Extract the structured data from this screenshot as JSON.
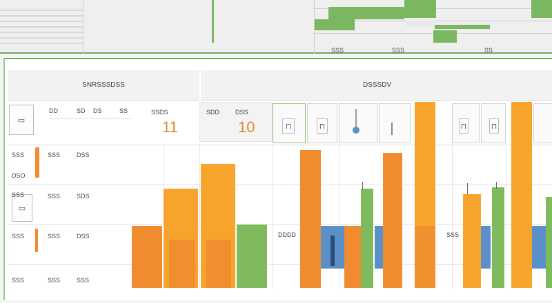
{
  "panel": {
    "header_left": "SNRSSSDSS",
    "header_right": "DSSSDV",
    "subheader_cols": [
      "DD",
      "SD",
      "DS",
      "SS"
    ],
    "kpi_1": {
      "label": "SSDS",
      "value": "11"
    },
    "kpi_2": {
      "label": "SDD",
      "value": "10"
    },
    "kpi_2_caption": "DSS"
  },
  "rows": [
    {
      "code": "SSS",
      "a": "SSS",
      "b": "DSS"
    },
    {
      "code": "DSO",
      "a": "SSS",
      "b": "SDS"
    },
    {
      "code": "SSS",
      "a": "SSS",
      "b": "DSS"
    },
    {
      "code": "SSS",
      "a": "SSS",
      "b": "SSS"
    }
  ],
  "side_labels": [
    "SSS",
    "SSS",
    "SSS"
  ],
  "chart_data": {
    "type": "bar",
    "title": "",
    "series_labels": [
      "orange",
      "amber",
      "green",
      "blue"
    ],
    "labels_inline": [
      "DDDD",
      "SSS"
    ],
    "colors": {
      "orange": "#f08b30",
      "amber": "#f6a42c",
      "green": "#7fba5c",
      "blue": "#5b8fc8"
    }
  },
  "timeline": {
    "labels": [
      "SSS",
      "SSS",
      "SS"
    ]
  }
}
